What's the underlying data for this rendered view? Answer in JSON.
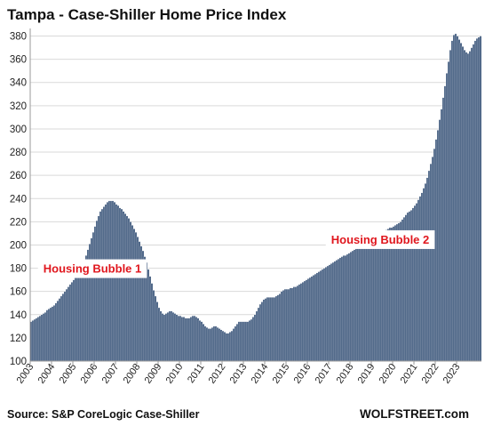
{
  "colors": {
    "bar": "#2e4a72",
    "bar_edge": "#ffffff",
    "grid": "#d9d9d9",
    "axis": "#9a9a9a",
    "annotation": "#e0161d"
  },
  "chart_data": {
    "type": "bar",
    "title": "Tampa - Case-Shiller Home Price Index",
    "xlabel": "",
    "ylabel": "",
    "ylim": [
      100,
      385
    ],
    "y_ticks": [
      100,
      120,
      140,
      160,
      180,
      200,
      220,
      240,
      260,
      280,
      300,
      320,
      340,
      360,
      380
    ],
    "x_ticks": [
      "2003",
      "2004",
      "2005",
      "2006",
      "2007",
      "2008",
      "2009",
      "2010",
      "2011",
      "2012",
      "2013",
      "2014",
      "2015",
      "2016",
      "2017",
      "2018",
      "2019",
      "2020",
      "2021",
      "2022",
      "2023"
    ],
    "grid": "horizontal",
    "frequency": "monthly",
    "series": [
      {
        "x_start": "2003-01",
        "values": [
          134,
          135,
          136,
          137,
          138,
          139,
          140,
          141,
          142,
          144,
          145,
          146,
          147,
          148,
          150,
          152,
          154,
          156,
          158,
          160,
          162,
          164,
          166,
          168,
          170,
          172,
          174,
          176,
          179,
          183,
          187,
          191,
          196,
          201,
          206,
          211,
          216,
          221,
          225,
          229,
          231,
          233,
          235,
          237,
          238,
          238,
          238,
          237,
          235,
          234,
          232,
          231,
          229,
          227,
          225,
          223,
          220,
          217,
          214,
          211,
          207,
          203,
          199,
          195,
          190,
          185,
          179,
          173,
          167,
          161,
          156,
          151,
          146,
          143,
          141,
          140,
          141,
          142,
          143,
          143,
          142,
          141,
          140,
          139,
          139,
          138,
          138,
          137,
          137,
          137,
          138,
          139,
          139,
          138,
          137,
          135,
          134,
          132,
          130,
          129,
          128,
          128,
          129,
          130,
          130,
          129,
          128,
          127,
          126,
          125,
          124,
          124,
          125,
          126,
          128,
          130,
          132,
          134,
          134,
          134,
          134,
          134,
          134,
          135,
          136,
          138,
          140,
          143,
          146,
          149,
          151,
          153,
          154,
          155,
          155,
          155,
          155,
          155,
          156,
          157,
          158,
          160,
          161,
          162,
          162,
          162,
          163,
          163,
          164,
          164,
          165,
          166,
          167,
          168,
          169,
          170,
          171,
          172,
          173,
          174,
          175,
          176,
          177,
          178,
          179,
          180,
          181,
          182,
          183,
          184,
          185,
          186,
          187,
          188,
          189,
          190,
          191,
          191,
          192,
          193,
          194,
          195,
          196,
          197,
          198,
          199,
          200,
          201,
          202,
          203,
          204,
          205,
          206,
          207,
          208,
          209,
          210,
          211,
          212,
          212,
          213,
          214,
          215,
          215,
          216,
          217,
          218,
          219,
          220,
          222,
          224,
          226,
          228,
          229,
          230,
          232,
          234,
          236,
          239,
          242,
          245,
          249,
          253,
          258,
          264,
          270,
          276,
          283,
          291,
          299,
          308,
          317,
          327,
          337,
          348,
          358,
          368,
          376,
          381,
          382,
          380,
          377,
          374,
          371,
          368,
          366,
          365,
          367,
          370,
          373,
          376,
          378,
          379,
          380
        ]
      }
    ],
    "annotations": [
      {
        "text": "Housing Bubble 1",
        "x": "2005-12",
        "y": 180
      },
      {
        "text": "Housing Bubble 2",
        "x": "2019-06",
        "y": 205
      }
    ],
    "source": "Source: S&P CoreLogic Case-Shiller",
    "brand": "WOLFSTREET.com"
  }
}
